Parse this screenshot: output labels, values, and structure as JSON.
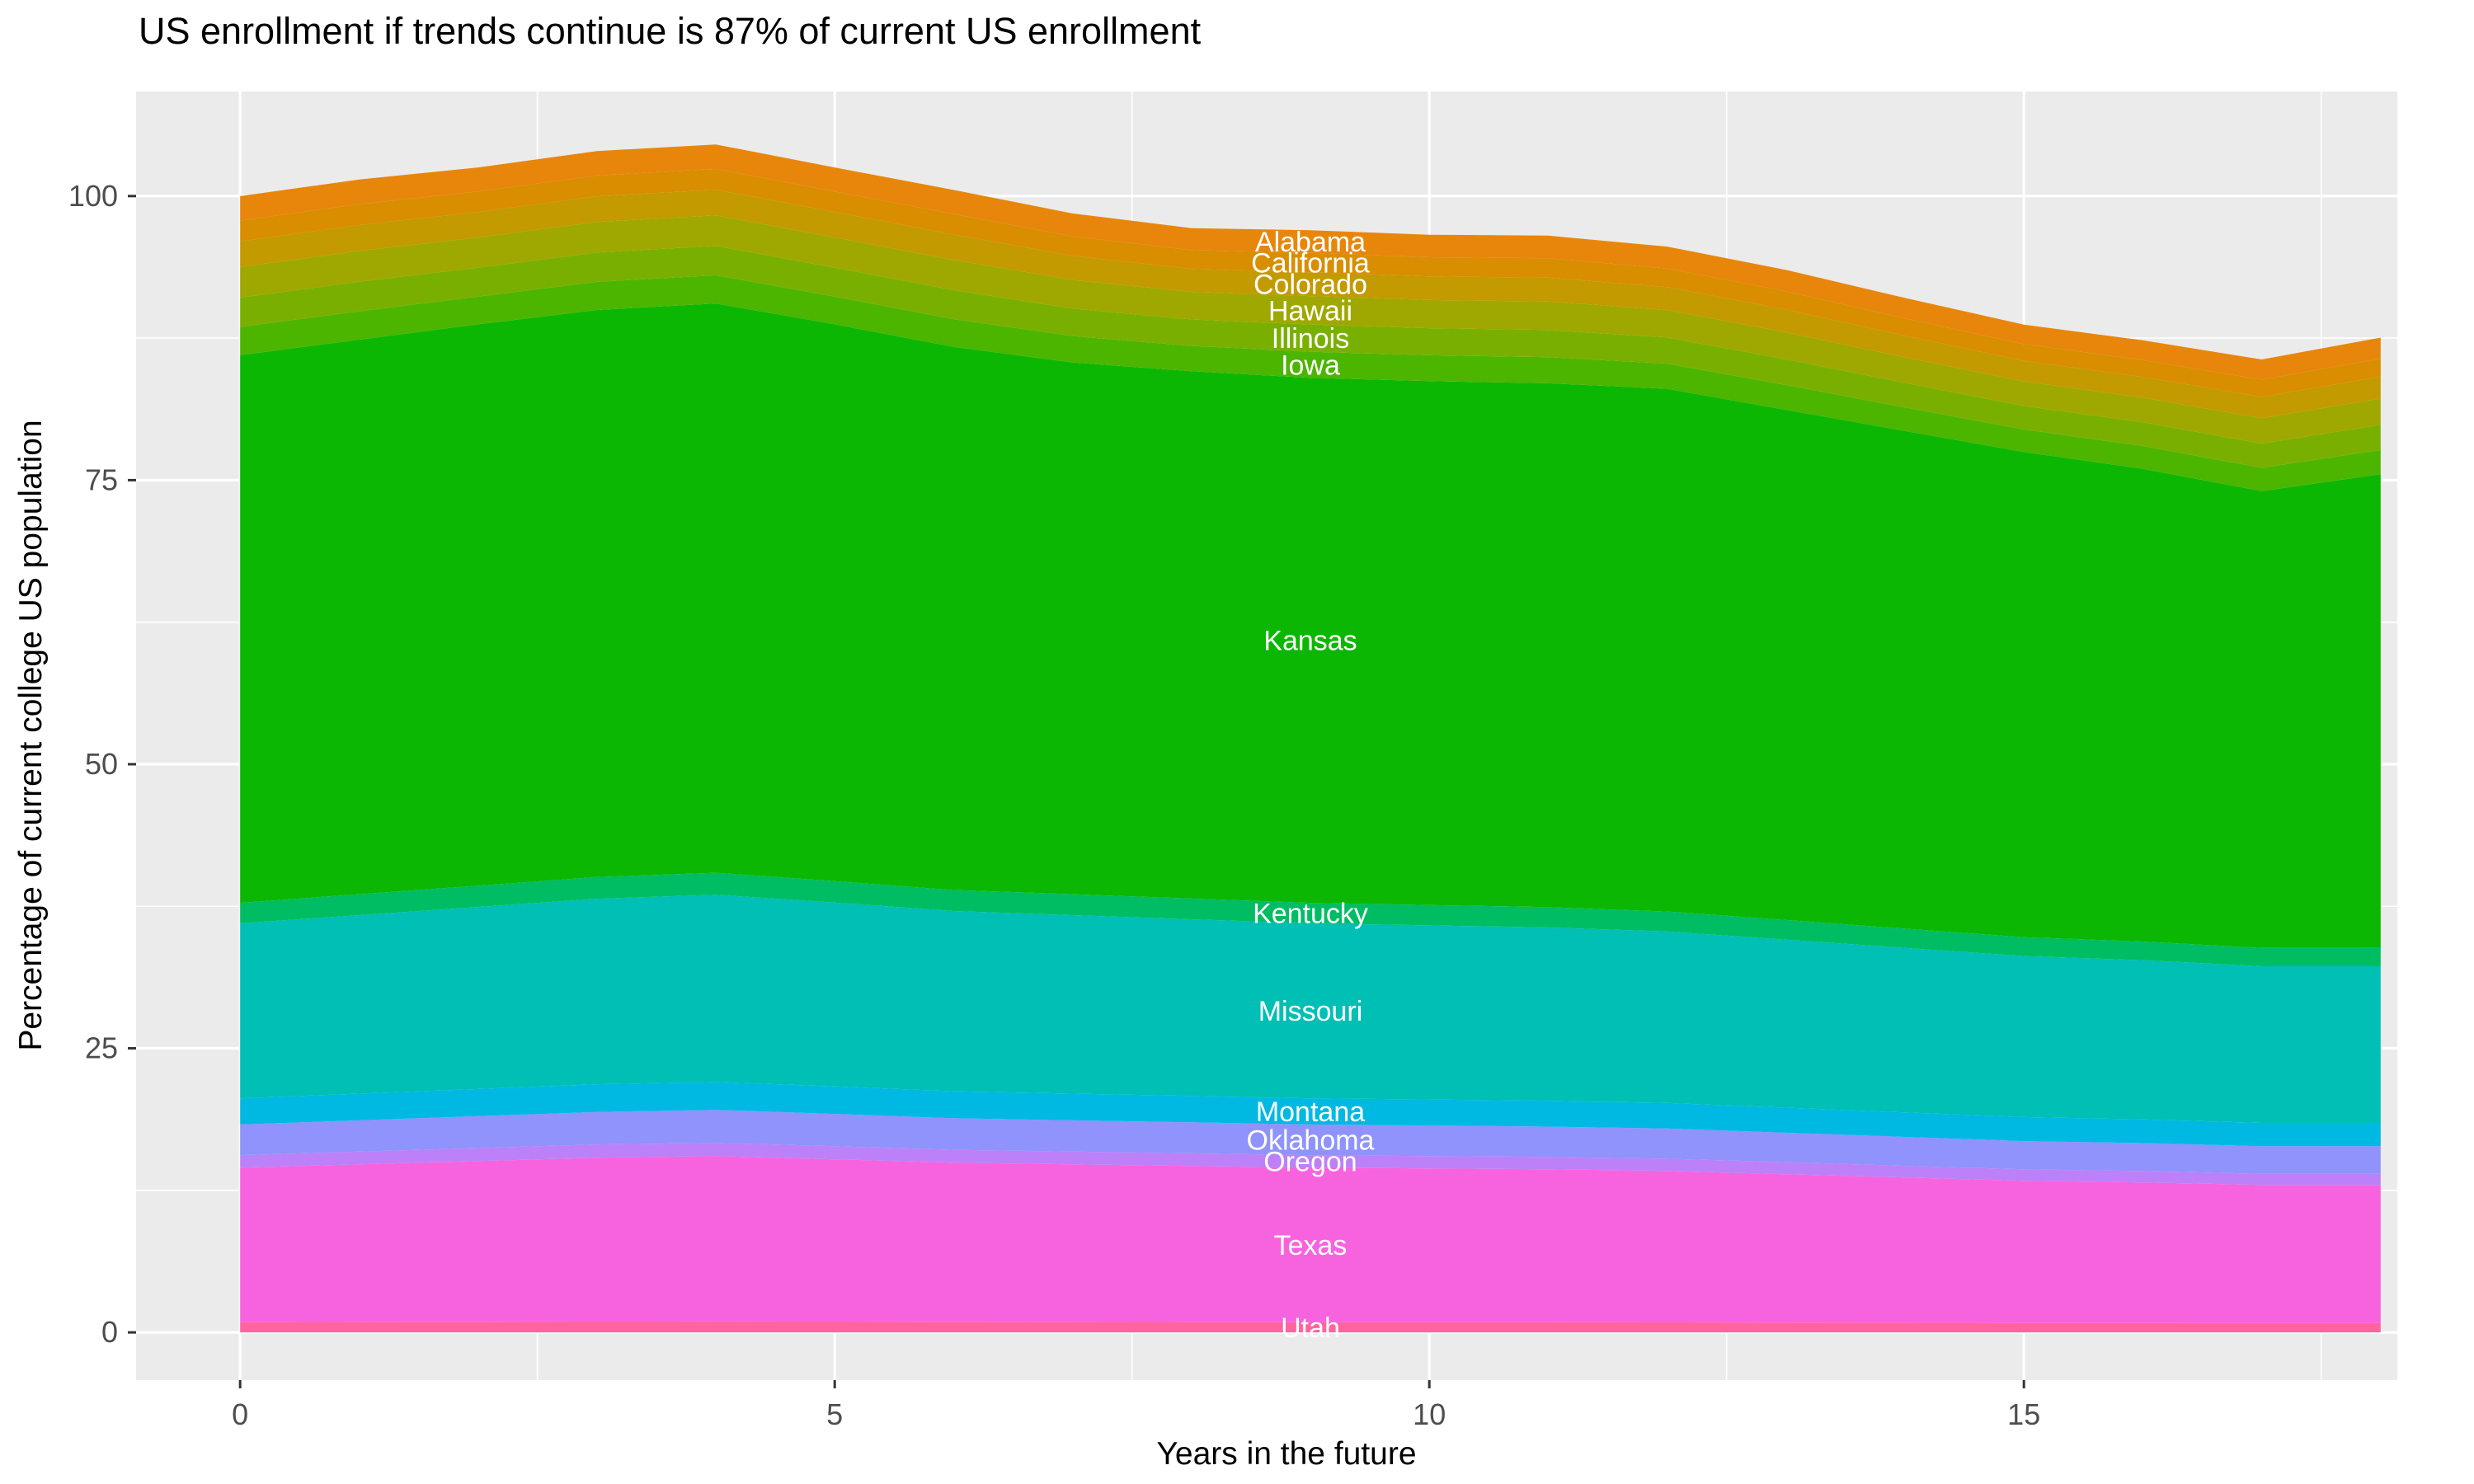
{
  "title": "US enrollment if trends continue is 87% of current US enrollment",
  "chart_data": {
    "type": "area",
    "stacked": true,
    "title": "US enrollment if trends continue is 87% of current US enrollment",
    "xlabel": "Years in the future",
    "ylabel": "Percentage of current college US population",
    "legend": "none",
    "grid": "on",
    "panel_bg": "#EBEBEB",
    "grid_color": "#FFFFFF",
    "area_label_color": "#FFFFFF",
    "tick_label_color": "#4D4D4D",
    "tick_mark_color": "#333333",
    "x": [
      0,
      1,
      2,
      3,
      4,
      5,
      6,
      7,
      8,
      9,
      10,
      11,
      12,
      13,
      14,
      15,
      16,
      17,
      18
    ],
    "x_ticks": [
      0,
      5,
      10,
      15
    ],
    "y_ticks": [
      0,
      25,
      50,
      75,
      100
    ],
    "x_minor_ticks": [
      2.5,
      7.5,
      12.5,
      17.5
    ],
    "y_minor_ticks": [
      12.5,
      37.5,
      62.5,
      87.5
    ],
    "x_range": [
      -0.875,
      18.14
    ],
    "y_range": [
      -4.2,
      109.2
    ],
    "label_x": 9,
    "stack_note": "series listed bottom-to-top; labels appear alphabetical top-to-bottom",
    "series": [
      {
        "name": "Utah",
        "color": "#FF649F",
        "values": [
          0.9,
          0.92,
          0.94,
          0.95,
          0.96,
          0.95,
          0.93,
          0.92,
          0.91,
          0.9,
          0.9,
          0.89,
          0.88,
          0.86,
          0.85,
          0.83,
          0.82,
          0.81,
          0.81
        ]
      },
      {
        "name": "Texas",
        "color": "#F763DF",
        "values": [
          13.6,
          13.87,
          14.14,
          14.42,
          14.55,
          14.28,
          14.01,
          13.87,
          13.74,
          13.6,
          13.53,
          13.46,
          13.33,
          13.06,
          12.78,
          12.51,
          12.38,
          12.17,
          12.17
        ]
      },
      {
        "name": "Oregon",
        "color": "#BC81F8",
        "values": [
          1.1,
          1.12,
          1.14,
          1.17,
          1.18,
          1.16,
          1.13,
          1.12,
          1.11,
          1.1,
          1.09,
          1.09,
          1.08,
          1.06,
          1.03,
          1.01,
          1.0,
          0.98,
          0.98
        ]
      },
      {
        "name": "Oklahoma",
        "color": "#8F93FB",
        "values": [
          2.7,
          2.75,
          2.81,
          2.86,
          2.89,
          2.84,
          2.78,
          2.75,
          2.73,
          2.7,
          2.69,
          2.67,
          2.65,
          2.59,
          2.54,
          2.48,
          2.46,
          2.42,
          2.42
        ]
      },
      {
        "name": "Montana",
        "color": "#00B9E3",
        "values": [
          2.3,
          2.35,
          2.39,
          2.44,
          2.46,
          2.42,
          2.37,
          2.35,
          2.32,
          2.3,
          2.29,
          2.28,
          2.25,
          2.21,
          2.16,
          2.12,
          2.09,
          2.06,
          2.06
        ]
      },
      {
        "name": "Missouri",
        "color": "#00BFB4",
        "values": [
          15.4,
          15.71,
          16.02,
          16.32,
          16.48,
          16.17,
          15.86,
          15.71,
          15.55,
          15.4,
          15.32,
          15.25,
          15.09,
          14.78,
          14.48,
          14.17,
          14.01,
          13.78,
          13.78
        ]
      },
      {
        "name": "Kentucky",
        "color": "#00BD64",
        "values": [
          1.8,
          1.84,
          1.87,
          1.91,
          1.93,
          1.89,
          1.85,
          1.84,
          1.82,
          1.8,
          1.79,
          1.78,
          1.76,
          1.73,
          1.69,
          1.66,
          1.64,
          1.61,
          1.61
        ]
      },
      {
        "name": "Kansas",
        "color": "#0BB702",
        "values": [
          48.2,
          48.8,
          49.4,
          49.9,
          50.1,
          49.0,
          47.8,
          46.8,
          46.4,
          46.2,
          46.1,
          46.1,
          46.0,
          44.9,
          43.8,
          42.7,
          41.6,
          40.2,
          41.7
        ]
      },
      {
        "name": "Iowa",
        "color": "#4CB500",
        "values": [
          2.48,
          2.5,
          2.44,
          2.48,
          2.48,
          2.44,
          2.44,
          2.32,
          2.23,
          2.3,
          2.28,
          2.3,
          2.21,
          2.18,
          2.07,
          1.98,
          2.0,
          2.05,
          2.12
        ]
      },
      {
        "name": "Illinois",
        "color": "#79B000",
        "values": [
          2.58,
          2.6,
          2.55,
          2.58,
          2.58,
          2.55,
          2.55,
          2.42,
          2.33,
          2.4,
          2.38,
          2.4,
          2.31,
          2.27,
          2.16,
          2.07,
          2.09,
          2.14,
          2.22
        ]
      },
      {
        "name": "Hawaii",
        "color": "#9FA800",
        "values": [
          2.69,
          2.71,
          2.66,
          2.69,
          2.69,
          2.66,
          2.66,
          2.52,
          2.42,
          2.5,
          2.48,
          2.5,
          2.41,
          2.37,
          2.25,
          2.16,
          2.17,
          2.23,
          2.31
        ]
      },
      {
        "name": "Colorado",
        "color": "#C39A00",
        "values": [
          2.26,
          2.28,
          2.23,
          2.26,
          2.26,
          2.23,
          2.23,
          2.12,
          2.03,
          2.1,
          2.08,
          2.1,
          2.02,
          1.99,
          1.89,
          1.81,
          1.82,
          1.87,
          1.94
        ]
      },
      {
        "name": "California",
        "color": "#D98E00",
        "values": [
          1.83,
          1.84,
          1.81,
          1.83,
          1.83,
          1.81,
          1.81,
          1.71,
          1.65,
          1.7,
          1.69,
          1.7,
          1.64,
          1.61,
          1.53,
          1.47,
          1.48,
          1.52,
          1.57
        ]
      },
      {
        "name": "Alabama",
        "color": "#E8860C",
        "values": [
          2.15,
          2.17,
          2.12,
          2.15,
          2.15,
          2.12,
          2.12,
          2.02,
          1.94,
          2.0,
          1.98,
          2.0,
          1.92,
          1.89,
          1.8,
          1.72,
          1.74,
          1.78,
          1.85
        ]
      }
    ]
  }
}
